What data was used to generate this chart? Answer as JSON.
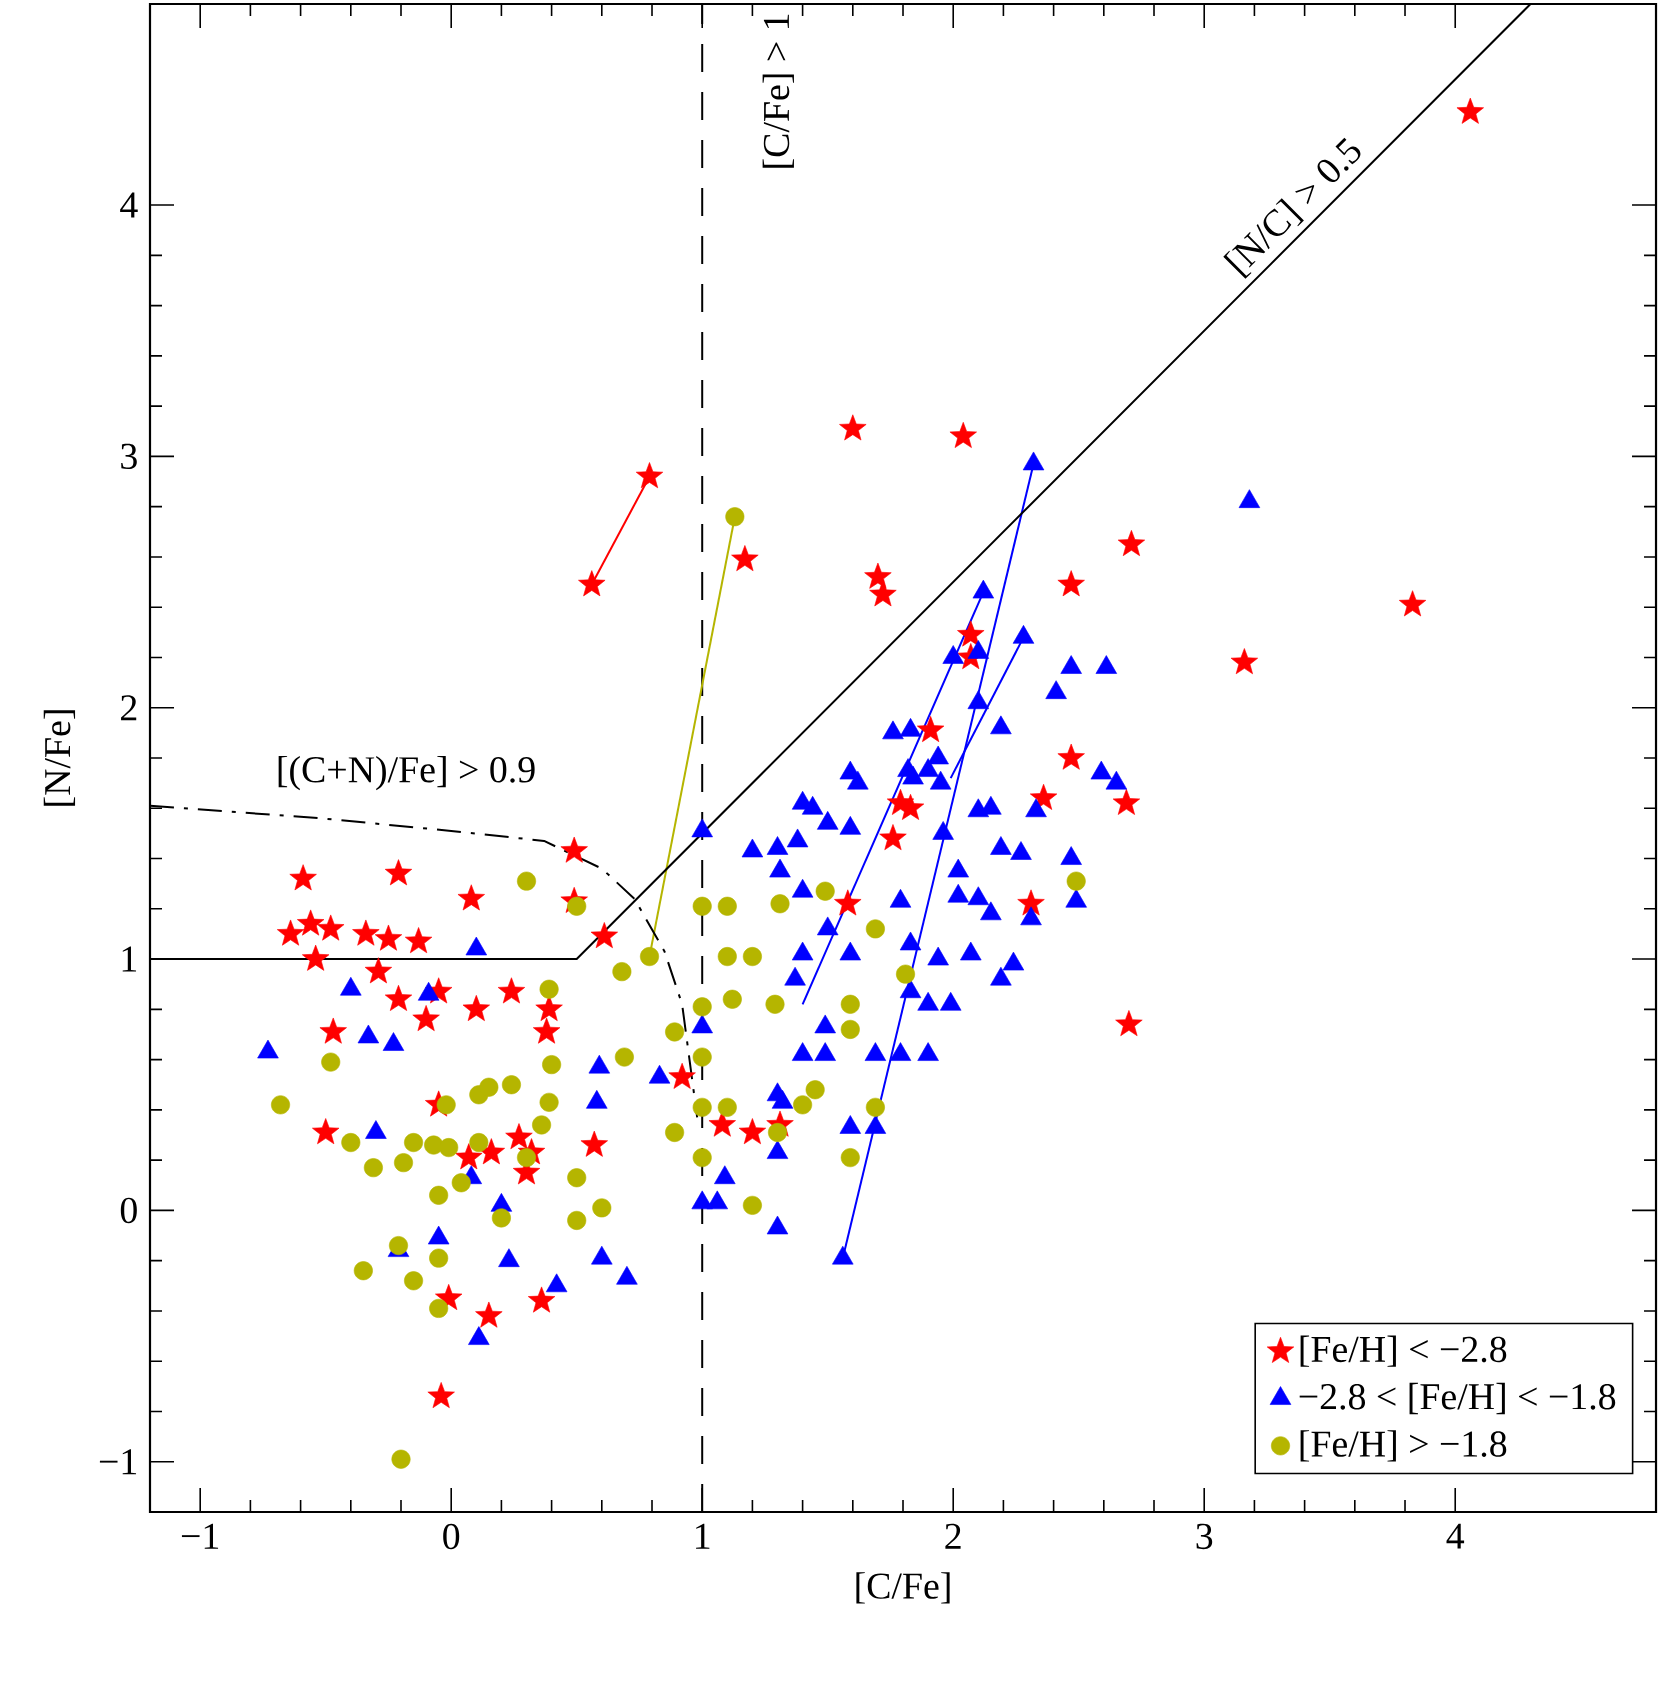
{
  "chart_data": {
    "type": "scatter",
    "xlabel": "[C/Fe]",
    "ylabel": "[N/Fe]",
    "xlim": [
      -1.2,
      4.8
    ],
    "ylim": [
      -1.2,
      4.8
    ],
    "xticks": [
      {
        "value": -1,
        "label": "−1"
      },
      0,
      1,
      2,
      3,
      4
    ],
    "yticks": [
      {
        "value": -1,
        "label": "−1"
      },
      0,
      1,
      2,
      3,
      4
    ],
    "legend": "bottom right",
    "series": [
      {
        "name": "[Fe/H] < −2.8",
        "color": "#ff0000",
        "marker": "star",
        "x": [
          -0.59,
          -0.21,
          0.08,
          -0.64,
          -0.56,
          -0.48,
          -0.54,
          -0.34,
          -0.25,
          -0.13,
          -0.29,
          -0.21,
          -0.05,
          -0.1,
          0.1,
          0.24,
          0.39,
          0.38,
          -0.47,
          0.49,
          0.61,
          0.49,
          -0.5,
          -0.05,
          0.07,
          0.16,
          0.27,
          0.32,
          0.3,
          0.57,
          0.92,
          1.08,
          1.2,
          1.31,
          -0.01,
          0.15,
          0.36,
          -0.04,
          0.56,
          0.79,
          1.17,
          4.06,
          1.6,
          2.04,
          2.71,
          3.83,
          3.16,
          1.7,
          1.72,
          2.47,
          2.07,
          2.07,
          2.47,
          1.91,
          1.79,
          1.76,
          1.58,
          2.69,
          2.36,
          2.31,
          2.7,
          1.83
        ],
        "values": [
          1.32,
          1.34,
          1.24,
          1.1,
          1.14,
          1.12,
          1.0,
          1.1,
          1.08,
          1.07,
          0.95,
          0.84,
          0.87,
          0.76,
          0.8,
          0.87,
          0.8,
          0.71,
          0.71,
          1.23,
          1.09,
          1.43,
          0.31,
          0.42,
          0.21,
          0.23,
          0.29,
          0.23,
          0.15,
          0.26,
          0.53,
          0.34,
          0.31,
          0.34,
          -0.35,
          -0.42,
          -0.36,
          -0.74,
          2.49,
          2.92,
          2.59,
          4.37,
          3.11,
          3.08,
          2.65,
          2.41,
          2.18,
          2.52,
          2.45,
          2.49,
          2.29,
          2.2,
          1.8,
          1.91,
          1.62,
          1.48,
          1.22,
          1.62,
          1.64,
          1.22,
          0.74,
          1.6
        ]
      },
      {
        "name": "−2.8 < [Fe/H] < −1.8",
        "color": "#0000ff",
        "marker": "triangle",
        "x": [
          -0.73,
          -0.4,
          -0.33,
          -0.23,
          -0.09,
          0.1,
          -0.3,
          -0.21,
          -0.05,
          0.08,
          0.2,
          0.23,
          0.42,
          0.59,
          0.58,
          0.6,
          0.7,
          0.11,
          0.83,
          1.0,
          1.0,
          1.0,
          1.06,
          1.09,
          1.3,
          1.3,
          1.3,
          1.2,
          2.32,
          3.18,
          2.12,
          2.28,
          2.41,
          2.47,
          2.61,
          2.0,
          2.1,
          1.76,
          1.83,
          2.19,
          1.59,
          1.82,
          1.94,
          2.59,
          1.84,
          1.4,
          1.5,
          1.59,
          1.96,
          2.1,
          2.15,
          2.33,
          1.3,
          1.38,
          2.19,
          2.27,
          2.47,
          1.31,
          2.02,
          2.02,
          2.1,
          2.15,
          2.49,
          2.31,
          1.5,
          1.4,
          1.79,
          1.83,
          1.94,
          2.07,
          1.59,
          1.4,
          2.24,
          2.19,
          1.37,
          1.83,
          1.9,
          1.99,
          1.49,
          1.4,
          1.49,
          1.69,
          1.79,
          1.9,
          1.32,
          1.59,
          1.69,
          1.56,
          1.62,
          1.9,
          1.95,
          2.65,
          1.44,
          2.1
        ],
        "values": [
          0.63,
          0.88,
          0.69,
          0.66,
          0.86,
          1.04,
          0.31,
          -0.16,
          -0.11,
          0.13,
          0.02,
          -0.2,
          -0.3,
          0.57,
          0.43,
          -0.19,
          -0.27,
          -0.51,
          0.53,
          1.51,
          0.73,
          0.03,
          0.03,
          0.13,
          0.23,
          -0.07,
          0.46,
          1.43,
          2.97,
          2.82,
          2.46,
          2.28,
          2.06,
          2.16,
          2.16,
          2.2,
          2.02,
          1.9,
          1.91,
          1.92,
          1.74,
          1.75,
          1.8,
          1.74,
          1.72,
          1.62,
          1.54,
          1.52,
          1.5,
          1.59,
          1.6,
          1.59,
          1.44,
          1.47,
          1.44,
          1.42,
          1.4,
          1.35,
          1.35,
          1.25,
          1.24,
          1.18,
          1.23,
          1.16,
          1.12,
          1.27,
          1.23,
          1.06,
          1.0,
          1.02,
          1.02,
          1.02,
          0.98,
          0.92,
          0.92,
          0.87,
          0.82,
          0.82,
          0.73,
          0.62,
          0.62,
          0.62,
          0.62,
          0.62,
          0.43,
          0.33,
          0.33,
          -0.19,
          1.7,
          1.75,
          1.7,
          1.7,
          1.6,
          2.22
        ]
      },
      {
        "name": "[Fe/H] > −1.8",
        "color": "#b5b500",
        "marker": "circle",
        "x": [
          -0.68,
          -0.48,
          -0.4,
          -0.31,
          -0.19,
          -0.15,
          -0.07,
          -0.02,
          -0.01,
          0.11,
          0.11,
          0.15,
          0.24,
          0.3,
          0.36,
          0.4,
          0.39,
          0.04,
          0.2,
          0.5,
          0.5,
          0.6,
          0.69,
          -0.21,
          -0.15,
          -0.05,
          -0.2,
          0.5,
          0.68,
          0.3,
          0.79,
          0.39,
          -0.05,
          -0.35,
          -0.05,
          1.12,
          1.2,
          1.0,
          1.1,
          1.1,
          1.0,
          0.89,
          1.0,
          1.0,
          0.89,
          1.0,
          1.1,
          1.2,
          1.29,
          1.45,
          1.4,
          1.3,
          1.13,
          2.49,
          1.49,
          1.31,
          1.69,
          1.59,
          1.59,
          1.69,
          1.59,
          1.81
        ],
        "values": [
          0.42,
          0.59,
          0.27,
          0.17,
          0.19,
          0.27,
          0.26,
          0.42,
          0.25,
          0.27,
          0.46,
          0.49,
          0.5,
          0.21,
          0.34,
          0.58,
          0.43,
          0.11,
          -0.03,
          0.13,
          -0.04,
          0.01,
          0.61,
          -0.14,
          -0.28,
          -0.19,
          -0.99,
          1.21,
          0.95,
          1.31,
          1.01,
          0.88,
          0.06,
          -0.24,
          -0.39,
          0.84,
          1.01,
          1.21,
          1.21,
          1.01,
          0.81,
          0.71,
          0.61,
          0.41,
          0.31,
          0.21,
          0.41,
          0.02,
          0.82,
          0.48,
          0.42,
          0.31,
          2.76,
          1.31,
          1.27,
          1.22,
          1.12,
          0.82,
          0.72,
          0.41,
          0.21,
          0.94
        ]
      },
      {
        "type": "line",
        "color": "#ff0000",
        "x": [
          0.56,
          0.79
        ],
        "values": [
          2.49,
          2.92
        ]
      },
      {
        "type": "line",
        "color": "#b5b500",
        "x": [
          0.79,
          1.13
        ],
        "values": [
          1.01,
          2.76
        ]
      },
      {
        "type": "line",
        "color": "#0000ff",
        "x": [
          1.56,
          2.32
        ],
        "values": [
          -0.19,
          2.97
        ]
      },
      {
        "type": "line",
        "color": "#0000ff",
        "x": [
          1.4,
          2.12
        ],
        "values": [
          0.82,
          2.46
        ]
      },
      {
        "type": "line",
        "color": "#0000ff",
        "x": [
          1.99,
          2.28
        ],
        "values": [
          1.72,
          2.28
        ]
      },
      {
        "type": "line",
        "color": "#000000",
        "line_style": "solid",
        "x": [
          -1.2,
          0.5,
          4.3
        ],
        "values": [
          1,
          1,
          4.8
        ]
      },
      {
        "type": "line",
        "color": "#000000",
        "line_style": "dashdot",
        "x": [
          -1.2,
          -0.52,
          0,
          0.37,
          0.6,
          0.73,
          0.85,
          0.92,
          0.98
        ],
        "values": [
          1.61,
          1.56,
          1.51,
          1.47,
          1.36,
          1.24,
          1.03,
          0.82,
          0.37
        ]
      }
    ],
    "ref_lines": [
      {
        "axis": "x",
        "value": 1,
        "label": "[C/Fe] > 1",
        "line_style": "dashed",
        "color": "#000000"
      }
    ],
    "annotations": [
      "[N/C] > 0.5",
      "[(C+N)/Fe] > 0.9"
    ]
  }
}
